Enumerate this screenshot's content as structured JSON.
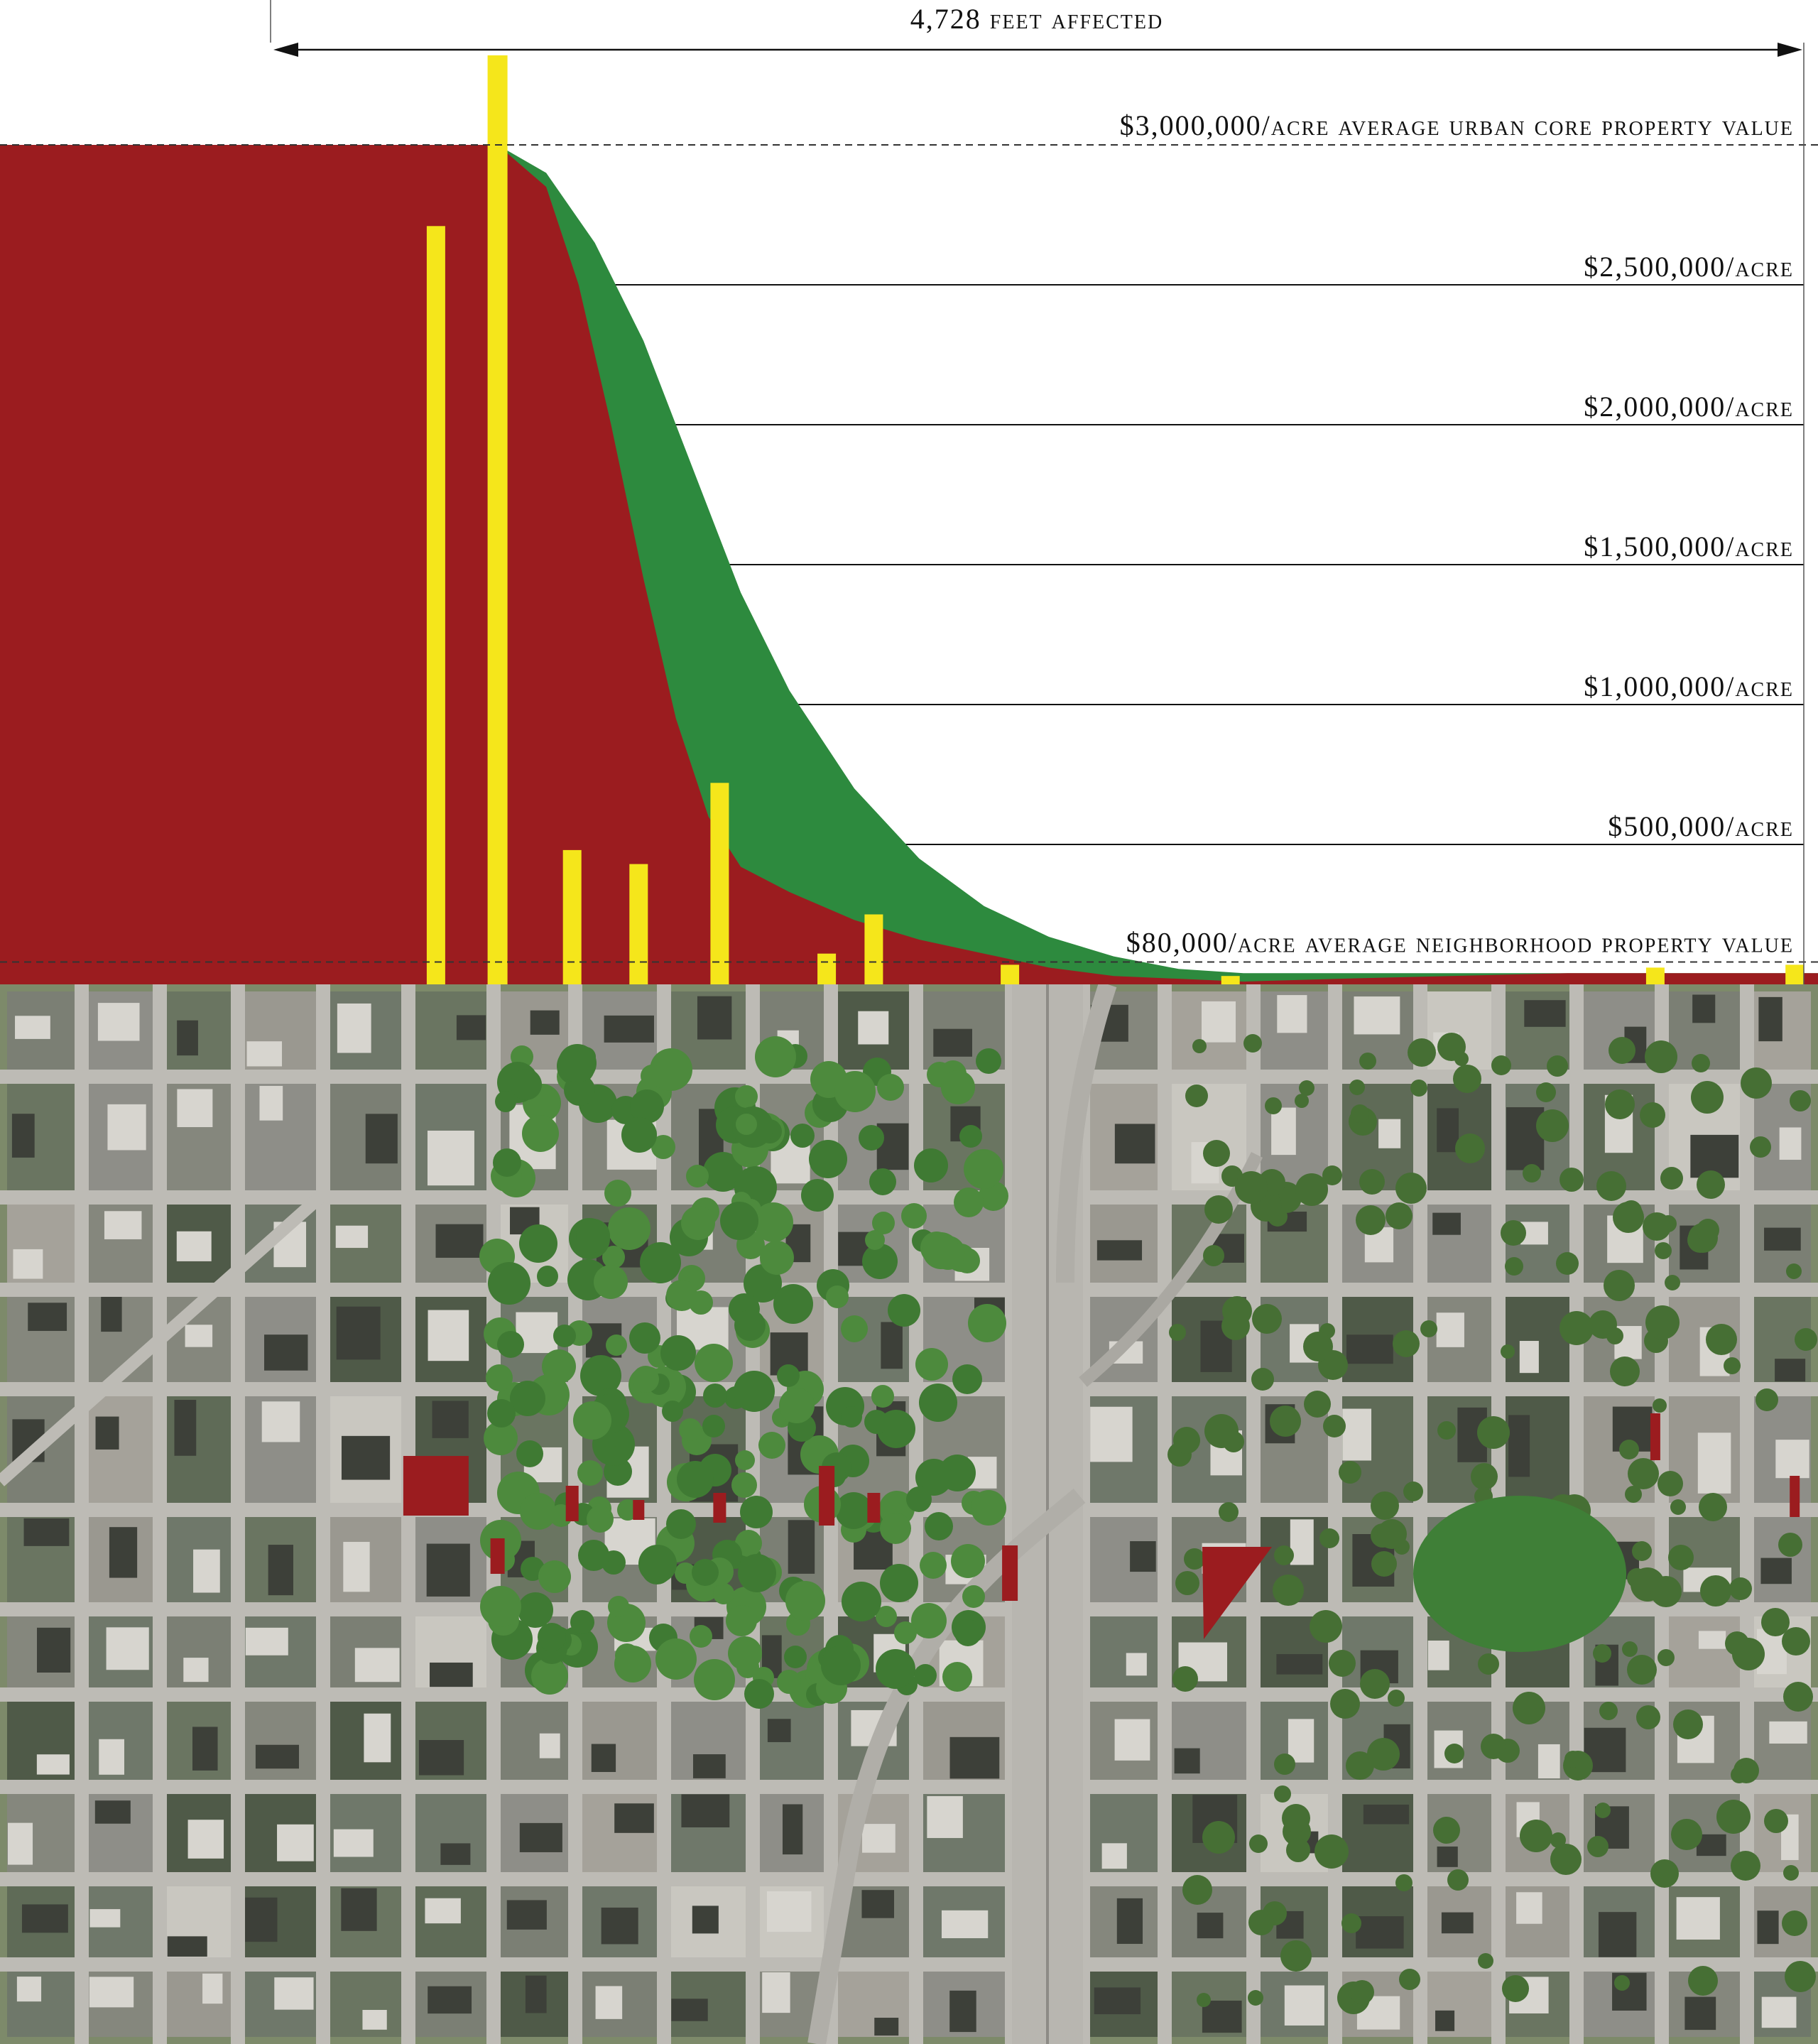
{
  "chart_data": {
    "type": "area",
    "title": "",
    "xlabel": "",
    "ylabel": "",
    "ylim": [
      0,
      3000000
    ],
    "xlim": [
      0,
      4728
    ],
    "span_annotation": "4,728 feet affected",
    "y_ticks": [
      {
        "value": 2500000,
        "label": "$2,500,000/acre"
      },
      {
        "value": 2000000,
        "label": "$2,000,000/acre"
      },
      {
        "value": 1500000,
        "label": "$1,500,000/acre"
      },
      {
        "value": 1000000,
        "label": "$1,000,000/acre"
      },
      {
        "value": 500000,
        "label": "$500,000/acre"
      }
    ],
    "reference_lines": [
      {
        "value": 3000000,
        "label": "$3,000,000/acre average urban core property value",
        "style": "dashed"
      },
      {
        "value": 80000,
        "label": "$80,000/acre average neighborhood property value",
        "style": "dashed"
      }
    ],
    "series": [
      {
        "color": "#2d8a3e",
        "x": [
          0,
          700,
          850,
          1000,
          1150,
          1300,
          1450,
          1600,
          1800,
          2000,
          2200,
          2400,
          2600,
          2800,
          3000,
          3300,
          3600,
          4000,
          4728
        ],
        "values": [
          3000000,
          3000000,
          2900000,
          2650000,
          2300000,
          1850000,
          1400000,
          1050000,
          700000,
          450000,
          280000,
          170000,
          100000,
          55000,
          40000,
          40000,
          40000,
          40000,
          40000
        ]
      },
      {
        "color": "#9b1c1f",
        "x": [
          0,
          700,
          850,
          950,
          1050,
          1150,
          1250,
          1350,
          1450,
          1600,
          1800,
          2000,
          2200,
          2400,
          2600,
          3000,
          3300,
          4000,
          4728
        ],
        "values": [
          3000000,
          3000000,
          2850000,
          2500000,
          2000000,
          1450000,
          950000,
          600000,
          420000,
          330000,
          230000,
          160000,
          110000,
          60000,
          30000,
          10000,
          20000,
          40000,
          40000
        ]
      }
    ],
    "bars": {
      "color": "#f5e61b",
      "x": [
        510,
        700,
        930,
        1135,
        1385,
        1715,
        1860,
        2280,
        2960,
        4270,
        4700
      ],
      "values": [
        2710000,
        3320000,
        480000,
        430000,
        720000,
        110000,
        250000,
        70000,
        30000,
        60000,
        70000
      ]
    },
    "map_parcels": {
      "color": "#9b1c1f",
      "x": [
        510,
        700,
        930,
        1135,
        1385,
        1715,
        1860,
        2280,
        2960,
        4270,
        4700
      ]
    }
  }
}
